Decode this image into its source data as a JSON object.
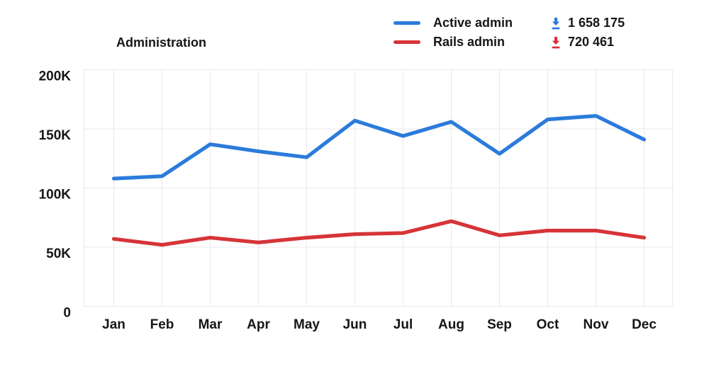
{
  "title": "Administration",
  "colors": {
    "active_admin": "#2b7bdb",
    "rails_admin": "#d63438",
    "gridline": "#e9e9e9",
    "text": "#161616",
    "background": "#ffffff"
  },
  "legend": {
    "position": "top-right",
    "items": [
      {
        "label": "Active admin",
        "total_downloads": "1 658 175",
        "icon": "download-icon",
        "color": "#2b7bdb"
      },
      {
        "label": "Rails admin",
        "total_downloads": "720 461",
        "icon": "download-icon",
        "color": "#d63438"
      }
    ]
  },
  "chart_data": {
    "type": "line",
    "title": "Administration",
    "categories": [
      "Jan",
      "Feb",
      "Mar",
      "Apr",
      "May",
      "Jun",
      "Jul",
      "Aug",
      "Sep",
      "Oct",
      "Nov",
      "Dec"
    ],
    "series": [
      {
        "name": "Active admin",
        "color": "#2b7bdb",
        "total_label": "1 658 175",
        "values": [
          108000,
          110000,
          137000,
          131000,
          126000,
          157000,
          144000,
          156000,
          129000,
          158000,
          161000,
          141000
        ]
      },
      {
        "name": "Rails admin",
        "color": "#d63438",
        "total_label": "720 461",
        "values": [
          57000,
          52000,
          58000,
          54000,
          58000,
          61000,
          62000,
          72000,
          60000,
          64000,
          64000,
          58000
        ]
      }
    ],
    "xlabel": "",
    "ylabel": "",
    "y_axis": {
      "range": [
        0,
        200000
      ],
      "ticks": [
        0,
        50000,
        100000,
        150000,
        200000
      ],
      "tick_labels": [
        "0",
        "50K",
        "100K",
        "150K",
        "200K"
      ]
    },
    "grid": true,
    "legend_position": "top-right"
  }
}
